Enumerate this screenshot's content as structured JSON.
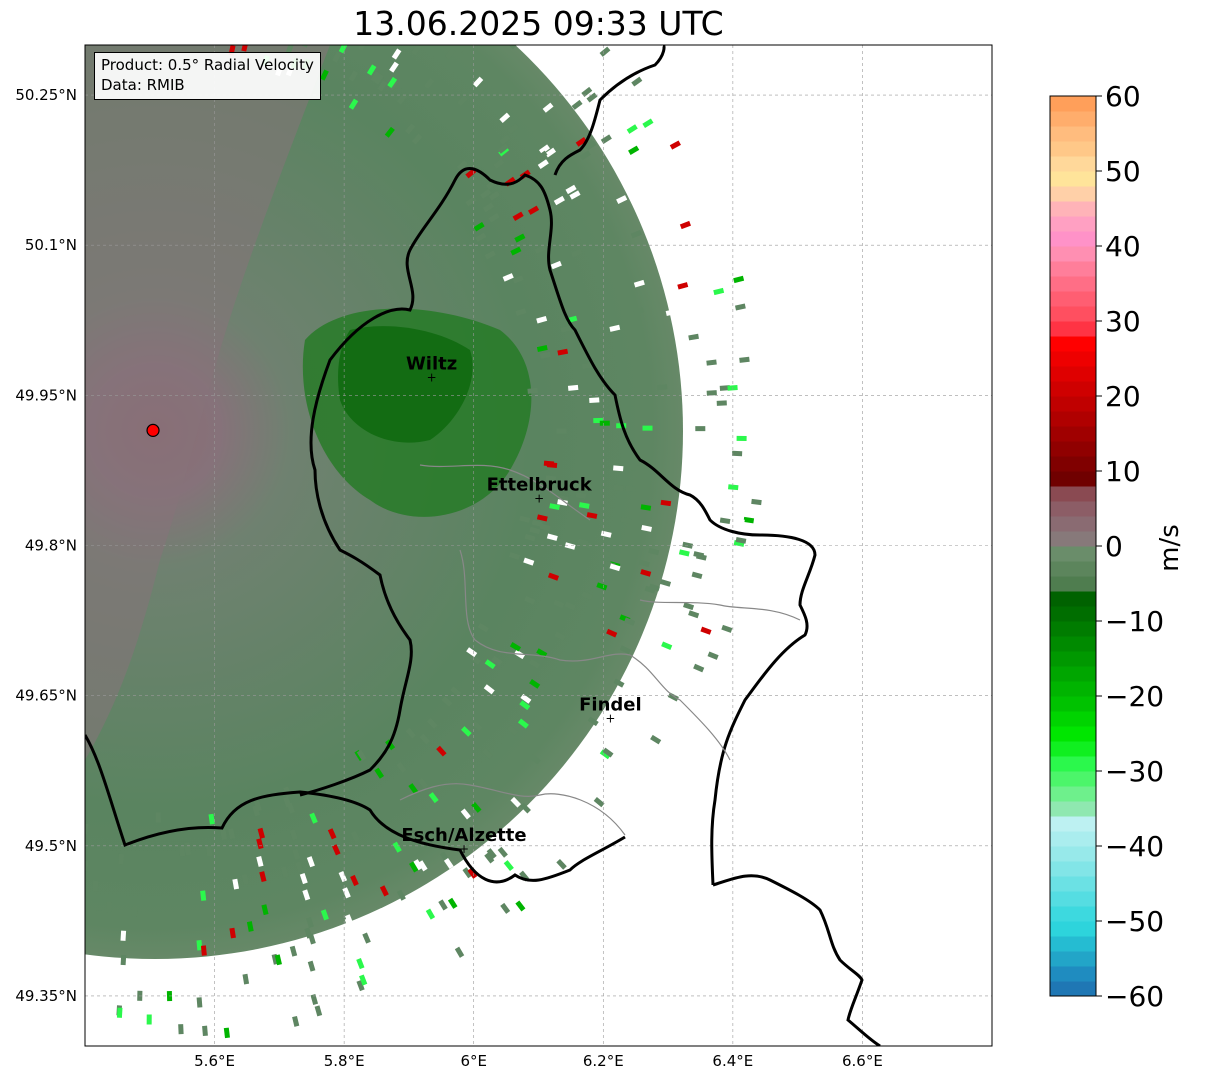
{
  "title": "13.06.2025 09:33 UTC",
  "info": {
    "product": "Product: 0.5° Radial Velocity",
    "data_source": "Data: RMIB"
  },
  "map": {
    "lon_range": [
      5.4,
      6.8
    ],
    "lat_range": [
      49.3,
      50.3
    ],
    "lon_ticks": [
      {
        "value": 5.6,
        "label": "5.6°E"
      },
      {
        "value": 5.8,
        "label": "5.8°E"
      },
      {
        "value": 6.0,
        "label": "6°E"
      },
      {
        "value": 6.2,
        "label": "6.2°E"
      },
      {
        "value": 6.4,
        "label": "6.4°E"
      },
      {
        "value": 6.6,
        "label": "6.6°E"
      }
    ],
    "lat_ticks": [
      {
        "value": 50.25,
        "label": "50.25°N"
      },
      {
        "value": 50.1,
        "label": "50.1°N"
      },
      {
        "value": 49.95,
        "label": "49.95°N"
      },
      {
        "value": 49.8,
        "label": "49.8°N"
      },
      {
        "value": 49.65,
        "label": "49.65°N"
      },
      {
        "value": 49.5,
        "label": "49.5°N"
      },
      {
        "value": 49.35,
        "label": "49.35°N"
      }
    ],
    "radar_site": {
      "lon": 5.505,
      "lat": 49.915,
      "color": "#ff0000"
    },
    "cities": [
      {
        "name": "Wiltz",
        "lon": 5.935,
        "lat": 49.968
      },
      {
        "name": "Ettelbruck",
        "lon": 6.101,
        "lat": 49.847
      },
      {
        "name": "Findel",
        "lon": 6.211,
        "lat": 49.627
      },
      {
        "name": "Esch/Alzette",
        "lon": 5.985,
        "lat": 49.497
      }
    ]
  },
  "colorbar": {
    "label": "m/s",
    "min": -60,
    "max": 60,
    "ticks": [
      {
        "value": 60,
        "label": "60"
      },
      {
        "value": 50,
        "label": "50"
      },
      {
        "value": 40,
        "label": "40"
      },
      {
        "value": 30,
        "label": "30"
      },
      {
        "value": 20,
        "label": "20"
      },
      {
        "value": 10,
        "label": "10"
      },
      {
        "value": 0,
        "label": "0"
      },
      {
        "value": -10,
        "label": "−10"
      },
      {
        "value": -20,
        "label": "−20"
      },
      {
        "value": -30,
        "label": "−30"
      },
      {
        "value": -40,
        "label": "−40"
      },
      {
        "value": -50,
        "label": "−50"
      },
      {
        "value": -60,
        "label": "−60"
      }
    ],
    "segments": [
      {
        "from": -60,
        "to": -58,
        "color": "#1f77b4"
      },
      {
        "from": -58,
        "to": -56,
        "color": "#1f8cc0"
      },
      {
        "from": -56,
        "to": -54,
        "color": "#22a5c8"
      },
      {
        "from": -54,
        "to": -52,
        "color": "#25bcd2"
      },
      {
        "from": -52,
        "to": -50,
        "color": "#2dd4dc"
      },
      {
        "from": -50,
        "to": -48,
        "color": "#3dd9df"
      },
      {
        "from": -48,
        "to": -46,
        "color": "#55dde2"
      },
      {
        "from": -46,
        "to": -44,
        "color": "#6be1e4"
      },
      {
        "from": -44,
        "to": -42,
        "color": "#82e5e7"
      },
      {
        "from": -42,
        "to": -40,
        "color": "#97e9ea"
      },
      {
        "from": -40,
        "to": -38,
        "color": "#aaedee"
      },
      {
        "from": -38,
        "to": -36,
        "color": "#bdf1f2"
      },
      {
        "from": -36,
        "to": -34,
        "color": "#8fe8b0"
      },
      {
        "from": -34,
        "to": -32,
        "color": "#6ef08c"
      },
      {
        "from": -32,
        "to": -30,
        "color": "#4cf56a"
      },
      {
        "from": -30,
        "to": -28,
        "color": "#2bf84c"
      },
      {
        "from": -28,
        "to": -26,
        "color": "#10ef20"
      },
      {
        "from": -26,
        "to": -24,
        "color": "#00e600"
      },
      {
        "from": -24,
        "to": -22,
        "color": "#00d400"
      },
      {
        "from": -22,
        "to": -20,
        "color": "#00c200"
      },
      {
        "from": -20,
        "to": -18,
        "color": "#00b400"
      },
      {
        "from": -18,
        "to": -16,
        "color": "#00a600"
      },
      {
        "from": -16,
        "to": -14,
        "color": "#009800"
      },
      {
        "from": -14,
        "to": -12,
        "color": "#008a00"
      },
      {
        "from": -12,
        "to": -10,
        "color": "#007c00"
      },
      {
        "from": -10,
        "to": -8,
        "color": "#006e00"
      },
      {
        "from": -8,
        "to": -6,
        "color": "#006200"
      },
      {
        "from": -6,
        "to": -4,
        "color": "#4f7d4f"
      },
      {
        "from": -4,
        "to": -2,
        "color": "#5c855c"
      },
      {
        "from": -2,
        "to": 0,
        "color": "#6a8d6a"
      },
      {
        "from": 0,
        "to": 2,
        "color": "#87797a"
      },
      {
        "from": 2,
        "to": 4,
        "color": "#8a6b72"
      },
      {
        "from": 4,
        "to": 6,
        "color": "#8c5d66"
      },
      {
        "from": 6,
        "to": 8,
        "color": "#8a4a52"
      },
      {
        "from": 8,
        "to": 10,
        "color": "#700000"
      },
      {
        "from": 10,
        "to": 12,
        "color": "#800000"
      },
      {
        "from": 12,
        "to": 14,
        "color": "#900000"
      },
      {
        "from": 14,
        "to": 16,
        "color": "#a00000"
      },
      {
        "from": 16,
        "to": 18,
        "color": "#b00000"
      },
      {
        "from": 18,
        "to": 20,
        "color": "#c00000"
      },
      {
        "from": 20,
        "to": 22,
        "color": "#cf0000"
      },
      {
        "from": 22,
        "to": 24,
        "color": "#df0000"
      },
      {
        "from": 24,
        "to": 26,
        "color": "#ee0000"
      },
      {
        "from": 26,
        "to": 28,
        "color": "#ff0000"
      },
      {
        "from": 28,
        "to": 30,
        "color": "#ff3344"
      },
      {
        "from": 30,
        "to": 32,
        "color": "#ff4f60"
      },
      {
        "from": 32,
        "to": 34,
        "color": "#ff5e72"
      },
      {
        "from": 34,
        "to": 36,
        "color": "#ff6e86"
      },
      {
        "from": 36,
        "to": 38,
        "color": "#ff7e9a"
      },
      {
        "from": 38,
        "to": 40,
        "color": "#ff8fb2"
      },
      {
        "from": 40,
        "to": 42,
        "color": "#ff92c8"
      },
      {
        "from": 42,
        "to": 44,
        "color": "#ffa0c2"
      },
      {
        "from": 44,
        "to": 46,
        "color": "#ffb3b8"
      },
      {
        "from": 46,
        "to": 48,
        "color": "#ffd0a8"
      },
      {
        "from": 48,
        "to": 50,
        "color": "#ffe49a"
      },
      {
        "from": 50,
        "to": 52,
        "color": "#ffd89a"
      },
      {
        "from": 52,
        "to": 54,
        "color": "#ffc888"
      },
      {
        "from": 54,
        "to": 56,
        "color": "#ffbc7e"
      },
      {
        "from": 56,
        "to": 58,
        "color": "#ffad6c"
      },
      {
        "from": 58,
        "to": 60,
        "color": "#ff9f5a"
      }
    ]
  }
}
